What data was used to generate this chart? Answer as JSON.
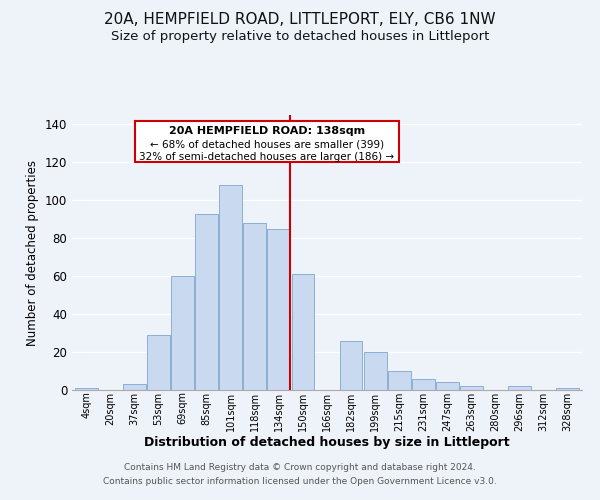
{
  "title": "20A, HEMPFIELD ROAD, LITTLEPORT, ELY, CB6 1NW",
  "subtitle": "Size of property relative to detached houses in Littleport",
  "xlabel": "Distribution of detached houses by size in Littleport",
  "ylabel": "Number of detached properties",
  "bar_labels": [
    "4sqm",
    "20sqm",
    "37sqm",
    "53sqm",
    "69sqm",
    "85sqm",
    "101sqm",
    "118sqm",
    "134sqm",
    "150sqm",
    "166sqm",
    "182sqm",
    "199sqm",
    "215sqm",
    "231sqm",
    "247sqm",
    "263sqm",
    "280sqm",
    "296sqm",
    "312sqm",
    "328sqm"
  ],
  "bar_heights": [
    1,
    0,
    3,
    29,
    60,
    93,
    108,
    88,
    85,
    61,
    0,
    26,
    20,
    10,
    6,
    4,
    2,
    0,
    2,
    0,
    1
  ],
  "bar_color": "#c9d9f0",
  "bar_edge_color": "#8bafd4",
  "vline_x_index": 8,
  "vline_color": "#cc0000",
  "annotation_title": "20A HEMPFIELD ROAD: 138sqm",
  "annotation_line1": "← 68% of detached houses are smaller (399)",
  "annotation_line2": "32% of semi-detached houses are larger (186) →",
  "annotation_box_color": "#ffffff",
  "annotation_box_edge": "#cc0000",
  "ylim": [
    0,
    145
  ],
  "footnote1": "Contains HM Land Registry data © Crown copyright and database right 2024.",
  "footnote2": "Contains public sector information licensed under the Open Government Licence v3.0.",
  "bg_color": "#eef2f9",
  "grid_color": "#ffffff",
  "title_fontsize": 11,
  "subtitle_fontsize": 9.5
}
